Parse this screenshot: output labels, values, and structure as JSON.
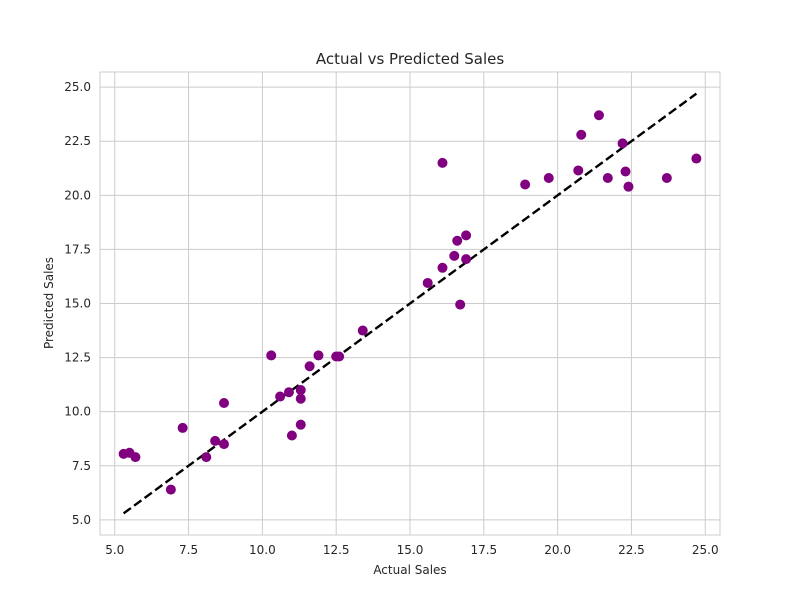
{
  "chart_data": {
    "type": "scatter",
    "title": "Actual vs Predicted Sales",
    "xlabel": "Actual Sales",
    "ylabel": "Predicted Sales",
    "xlim": [
      4.5,
      25.5
    ],
    "ylim": [
      4.3,
      25.7
    ],
    "x_ticks": [
      "5.0",
      "7.5",
      "10.0",
      "12.5",
      "15.0",
      "17.5",
      "20.0",
      "22.5",
      "25.0"
    ],
    "y_ticks": [
      "5.0",
      "7.5",
      "10.0",
      "12.5",
      "15.0",
      "17.5",
      "20.0",
      "22.5",
      "25.0"
    ],
    "grid": true,
    "points": [
      {
        "x": 5.3,
        "y": 8.05
      },
      {
        "x": 5.5,
        "y": 8.1
      },
      {
        "x": 5.7,
        "y": 7.9
      },
      {
        "x": 6.9,
        "y": 6.4
      },
      {
        "x": 7.3,
        "y": 9.25
      },
      {
        "x": 8.1,
        "y": 7.9
      },
      {
        "x": 8.4,
        "y": 8.65
      },
      {
        "x": 8.7,
        "y": 8.5
      },
      {
        "x": 8.7,
        "y": 10.4
      },
      {
        "x": 10.3,
        "y": 12.6
      },
      {
        "x": 10.6,
        "y": 10.7
      },
      {
        "x": 10.9,
        "y": 10.9
      },
      {
        "x": 11.0,
        "y": 8.9
      },
      {
        "x": 11.3,
        "y": 11.0
      },
      {
        "x": 11.3,
        "y": 10.6
      },
      {
        "x": 11.3,
        "y": 9.4
      },
      {
        "x": 11.6,
        "y": 12.1
      },
      {
        "x": 11.9,
        "y": 12.6
      },
      {
        "x": 12.5,
        "y": 12.55
      },
      {
        "x": 12.6,
        "y": 12.55
      },
      {
        "x": 13.4,
        "y": 13.75
      },
      {
        "x": 15.6,
        "y": 15.95
      },
      {
        "x": 16.1,
        "y": 21.5
      },
      {
        "x": 16.1,
        "y": 16.65
      },
      {
        "x": 16.5,
        "y": 17.2
      },
      {
        "x": 16.6,
        "y": 17.9
      },
      {
        "x": 16.7,
        "y": 14.95
      },
      {
        "x": 16.9,
        "y": 17.05
      },
      {
        "x": 16.9,
        "y": 18.15
      },
      {
        "x": 18.9,
        "y": 20.5
      },
      {
        "x": 19.7,
        "y": 20.8
      },
      {
        "x": 20.7,
        "y": 21.15
      },
      {
        "x": 20.8,
        "y": 22.8
      },
      {
        "x": 21.4,
        "y": 23.7
      },
      {
        "x": 21.7,
        "y": 20.8
      },
      {
        "x": 22.2,
        "y": 22.4
      },
      {
        "x": 22.3,
        "y": 21.1
      },
      {
        "x": 22.4,
        "y": 20.4
      },
      {
        "x": 23.7,
        "y": 20.8
      },
      {
        "x": 24.7,
        "y": 21.7
      }
    ],
    "reference_line": {
      "x": [
        5.3,
        24.7
      ],
      "y": [
        5.3,
        24.7
      ],
      "style": "dashed",
      "color": "#000000"
    },
    "point_color": "#800080"
  }
}
